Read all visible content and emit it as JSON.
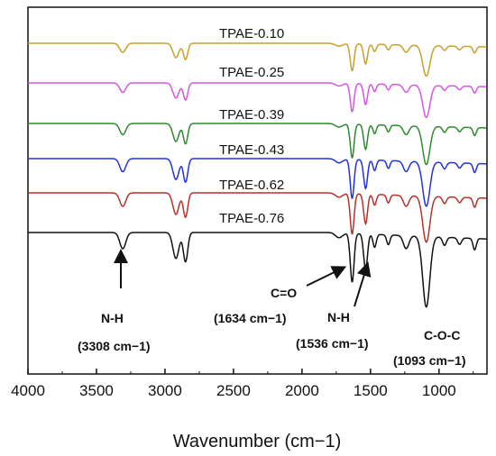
{
  "chart_data": {
    "type": "line",
    "title": "",
    "xlabel": "Wavenumber (cm−1)",
    "ylabel": "",
    "x_reversed": true,
    "xlim": [
      4000,
      650
    ],
    "x_ticks": [
      4000,
      3500,
      3000,
      2500,
      2000,
      1500,
      1000
    ],
    "x_tick_labels": [
      "4000",
      "3500",
      "3000",
      "2500",
      "2000",
      "1500",
      "1000"
    ],
    "y_ticks_shown": false,
    "grid": false,
    "legend": "none (series labeled directly above each trace)",
    "series": [
      {
        "name": "TPAE-0.10",
        "color": "#c8a02c"
      },
      {
        "name": "TPAE-0.25",
        "color": "#d657e0"
      },
      {
        "name": "TPAE-0.39",
        "color": "#2f8a2f"
      },
      {
        "name": "TPAE-0.43",
        "color": "#2233dd"
      },
      {
        "name": "TPAE-0.62",
        "color": "#b5322a"
      },
      {
        "name": "TPAE-0.76",
        "color": "#111111"
      }
    ],
    "annotations": [
      {
        "label": "N-H",
        "sub": "(3308 cm−1)",
        "x": 3308
      },
      {
        "label": "C=O",
        "sub": "(1634 cm−1)",
        "x": 1634
      },
      {
        "label": "N-H",
        "sub": "(1536 cm−1)",
        "x": 1536
      },
      {
        "label": "C-O-C",
        "sub": "(1093 cm−1)",
        "x": 1093
      }
    ]
  }
}
